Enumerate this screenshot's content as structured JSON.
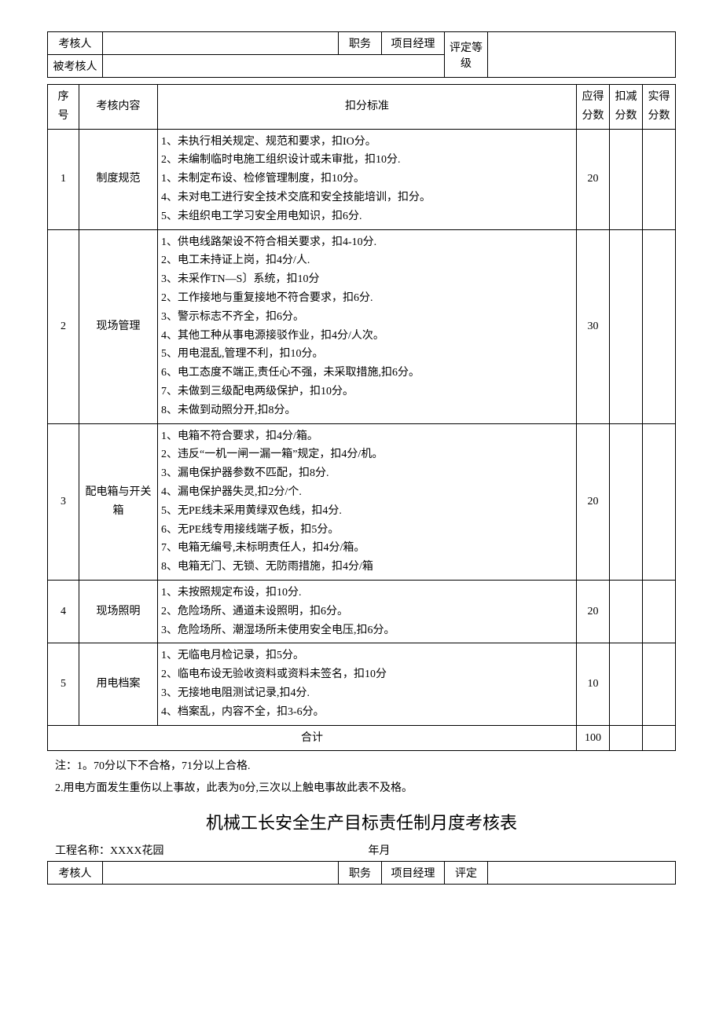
{
  "header1": {
    "assessor_label": "考核人",
    "assessor_value": "",
    "post_label": "职务",
    "post_value": "项目经理",
    "grade_label": "评定等级",
    "grade_value": "",
    "assessee_label": "被考核人",
    "assessee_value": ""
  },
  "cols": {
    "seq": "序号",
    "content": "考核内容",
    "std": "扣分标准",
    "should": "应得分数",
    "deduct": "扣减分数",
    "actual": "实得分数"
  },
  "rows": [
    {
      "seq": "1",
      "content": "制度规范",
      "std": "1、未执行相关规定、规范和要求，扣IO分。\n2、未编制临时电施工组织设计或未审批，扣10分.\n1、未制定布设、检修管理制度，扣10分。\n4、未对电工进行安全技术交底和安全技能培训，扣分。\n5、未组织电工学习安全用电知识，扣6分.",
      "should": "20"
    },
    {
      "seq": "2",
      "content": "现场管理",
      "std": "1、供电线路架设不符合相关要求，扣4-10分.\n2、电工未持证上岗，扣4分/人.\n3、未采作TN—S〕系统，扣10分\n2、工作接地与重复接地不符合要求，扣6分.\n3、警示标志不齐全，扣6分。\n4、其他工种从事电源接驳作业，扣4分/人次。\n5、用电混乱,管理不利，扣10分。\n6、电工态度不端正,责任心不强，未采取措施,扣6分。\n7、未做到三级配电两级保护，扣10分。\n8、未做到动照分开,扣8分。",
      "should": "30"
    },
    {
      "seq": "3",
      "content": "配电箱与开关箱",
      "std": "1、电箱不符合要求，扣4分/箱。\n2、违反“一机一闸一漏一箱”规定，扣4分/机。\n3、漏电保护器参数不匹配，扣8分.\n4、漏电保护器失灵,扣2分/个.\n5、无PE线未采用黄绿双色线，扣4分.\n6、无PE线专用接线端子板，扣5分。\n7、电箱无编号,未标明责任人，扣4分/箱。\n8、电箱无门、无锁、无防雨措施，扣4分/箱",
      "should": "20"
    },
    {
      "seq": "4",
      "content": "现场照明",
      "std": "1、未按照规定布设，扣10分.\n2、危险场所、通道未设照明，扣6分。\n3、危险场所、潮湿场所未使用安全电压,扣6分。",
      "should": "20"
    },
    {
      "seq": "5",
      "content": "用电档案",
      "std": "1、无临电月检记录，扣5分。\n2、临电布设无验收资料或资料未签名，扣10分\n3、无接地电阻测试记录,扣4分.\n4、档案乱，内容不全，扣3-6分。",
      "should": "10"
    }
  ],
  "total_label": "合计",
  "total_value": "100",
  "notes": {
    "n1": "注：1。70分以下不合格，71分以上合格.",
    "n2": "2.用电方面发生重伤以上事故，此表为0分,三次以上触电事故此表不及格。"
  },
  "title2": "机械工长安全生产目标责任制月度考核表",
  "proj": {
    "label": "工程名称：",
    "name": "XXXX花园",
    "date": "年月"
  },
  "header2": {
    "assessor_label": "考核人",
    "post_label": "职务",
    "post_value": "项目经理",
    "grade_label": "评定"
  }
}
